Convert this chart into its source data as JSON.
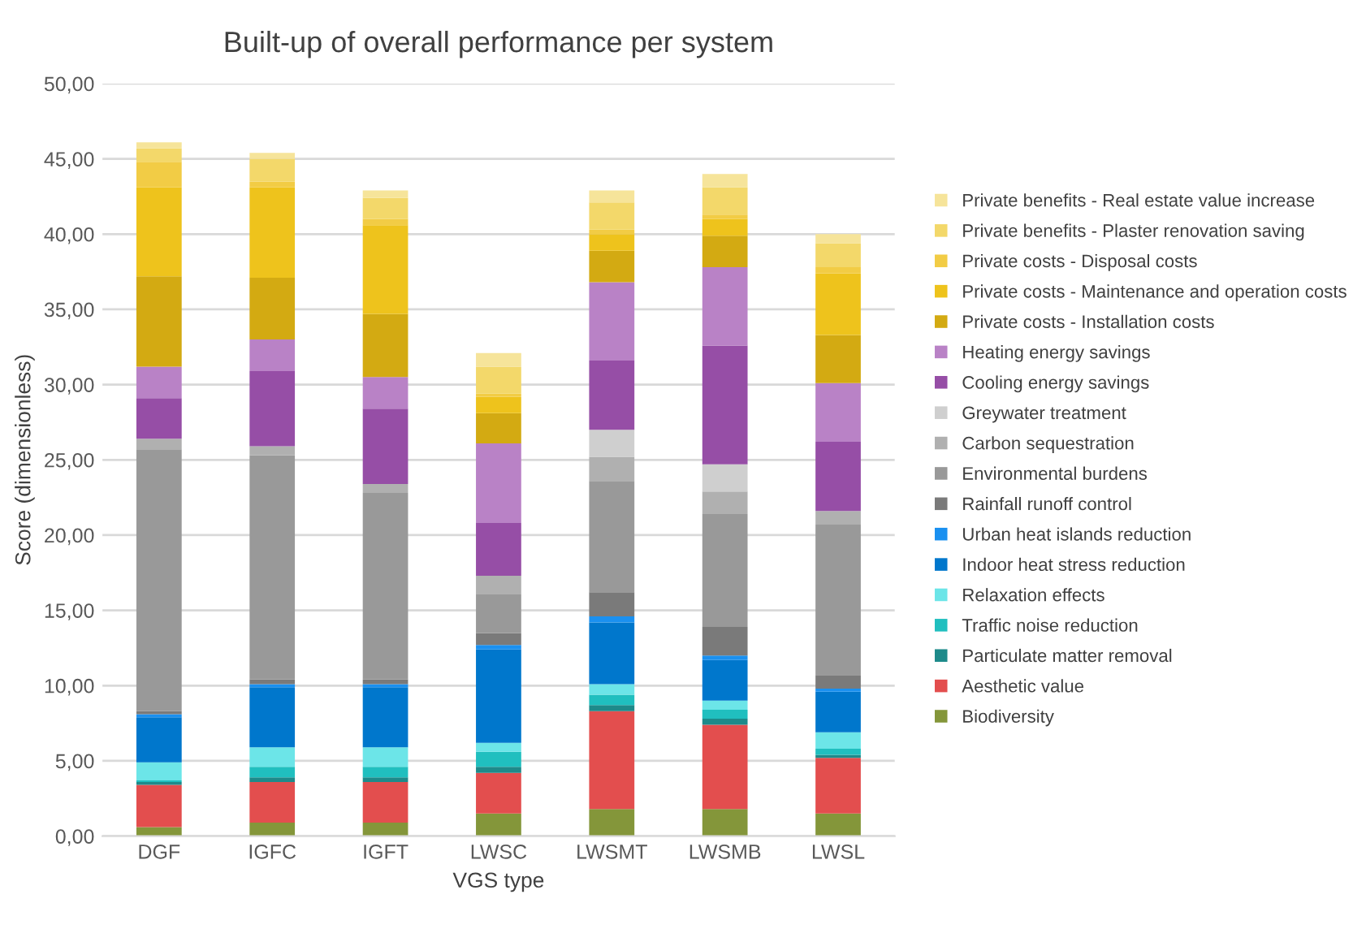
{
  "chart_data": {
    "type": "bar",
    "stacked": true,
    "title": "Built-up of overall performance per system",
    "xlabel": "VGS type",
    "ylabel": "Score (dimensionless)",
    "categories": [
      "DGF",
      "IGFC",
      "IGFT",
      "LWSC",
      "LWSMT",
      "LWSMB",
      "LWSL"
    ],
    "series": [
      {
        "name": "Biodiversity",
        "color": "#84963a",
        "values": [
          0.6,
          0.9,
          0.9,
          1.5,
          1.8,
          1.8,
          1.5
        ]
      },
      {
        "name": "Aesthetic value",
        "color": "#e34e4e",
        "values": [
          2.8,
          2.7,
          2.7,
          2.7,
          6.5,
          5.6,
          3.7
        ]
      },
      {
        "name": "Particulate matter removal",
        "color": "#1e8a8a",
        "values": [
          0.2,
          0.3,
          0.3,
          0.4,
          0.4,
          0.4,
          0.2
        ]
      },
      {
        "name": "Traffic noise reduction",
        "color": "#20bfbf",
        "values": [
          0.1,
          0.7,
          0.7,
          1.0,
          0.7,
          0.6,
          0.4
        ]
      },
      {
        "name": "Relaxation effects",
        "color": "#6ce5e8",
        "values": [
          1.2,
          1.3,
          1.3,
          0.6,
          0.7,
          0.6,
          1.1
        ]
      },
      {
        "name": "Indoor heat stress reduction",
        "color": "#0077cc",
        "values": [
          3.0,
          4.0,
          4.0,
          6.2,
          4.1,
          2.7,
          2.7
        ]
      },
      {
        "name": "Urban heat islands reduction",
        "color": "#1a90f0",
        "values": [
          0.2,
          0.2,
          0.2,
          0.3,
          0.4,
          0.3,
          0.2
        ]
      },
      {
        "name": "Rainfall runoff control",
        "color": "#7a7a7a",
        "values": [
          0.2,
          0.3,
          0.3,
          0.8,
          1.6,
          1.9,
          0.9
        ]
      },
      {
        "name": "Environmental burdens",
        "color": "#999999",
        "values": [
          17.4,
          14.9,
          12.4,
          2.6,
          7.4,
          7.5,
          10.0
        ]
      },
      {
        "name": "Carbon sequestration",
        "color": "#b0b0b0",
        "values": [
          0.7,
          0.6,
          0.6,
          1.2,
          1.6,
          1.5,
          0.9
        ]
      },
      {
        "name": "Greywater treatment",
        "color": "#cfcfcf",
        "values": [
          0,
          0,
          0,
          0,
          1.8,
          1.8,
          0
        ]
      },
      {
        "name": "Cooling energy savings",
        "color": "#964ea6",
        "values": [
          2.7,
          5.0,
          5.0,
          3.5,
          4.6,
          7.9,
          4.6
        ]
      },
      {
        "name": "Heating energy savings",
        "color": "#b982c6",
        "values": [
          2.1,
          2.1,
          2.1,
          5.3,
          5.2,
          5.2,
          3.9
        ]
      },
      {
        "name": "Private costs - Installation costs",
        "color": "#d3aa12",
        "values": [
          6.0,
          4.1,
          4.2,
          2.0,
          2.1,
          2.1,
          3.2
        ]
      },
      {
        "name": "Private costs - Maintenance and operation costs",
        "color": "#eec31c",
        "values": [
          5.9,
          6.0,
          5.9,
          1.1,
          1.1,
          1.1,
          4.1
        ]
      },
      {
        "name": "Private costs - Disposal costs",
        "color": "#f2cc45",
        "values": [
          1.7,
          0.4,
          0.4,
          0.2,
          0.3,
          0.3,
          0.4
        ]
      },
      {
        "name": "Private benefits - Plaster renovation saving",
        "color": "#f3d86a",
        "values": [
          0.9,
          1.5,
          1.4,
          1.8,
          1.8,
          1.8,
          1.6
        ]
      },
      {
        "name": "Private benefits - Real estate value increase",
        "color": "#f6e49a",
        "values": [
          0.4,
          0.4,
          0.5,
          0.9,
          0.8,
          0.9,
          0.6
        ]
      }
    ],
    "ylim": [
      0,
      50
    ],
    "yticks": [
      {
        "value": 0,
        "label": "0,00"
      },
      {
        "value": 5,
        "label": "5,00"
      },
      {
        "value": 10,
        "label": "10,00"
      },
      {
        "value": 15,
        "label": "15,00"
      },
      {
        "value": 20,
        "label": "20,00"
      },
      {
        "value": 25,
        "label": "25,00"
      },
      {
        "value": 30,
        "label": "30,00"
      },
      {
        "value": 35,
        "label": "35,00"
      },
      {
        "value": 40,
        "label": "40,00"
      },
      {
        "value": 45,
        "label": "45,00"
      },
      {
        "value": 50,
        "label": "50,00"
      }
    ],
    "grid": "y",
    "legend": "right"
  }
}
